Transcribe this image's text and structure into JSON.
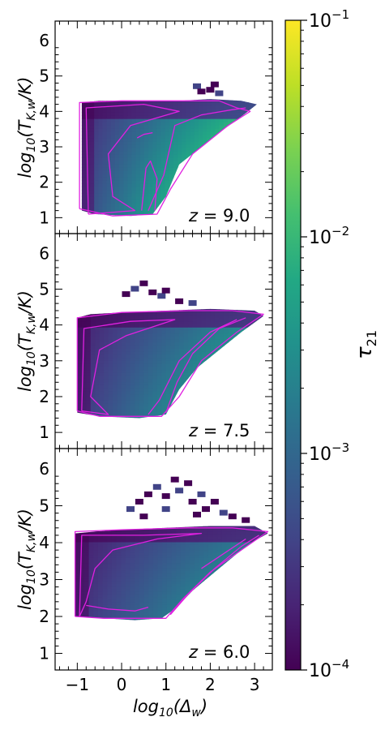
{
  "chart_data": [
    {
      "type": "heatmap",
      "panel": "z = 9.0",
      "annotation": {
        "math": "z",
        "text": "= 9.0"
      },
      "ylabel": "log10(TK,w/K)",
      "xlim": [
        -1.5,
        3.4
      ],
      "ylim": [
        0.55,
        6.55
      ],
      "yticks": [
        1,
        2,
        3,
        4,
        5,
        6
      ],
      "ytick_labels": [
        "1",
        "2",
        "3",
        "4",
        "5",
        "6"
      ],
      "region": {
        "bottom_boundary": [
          [
            -0.9,
            1.2
          ],
          [
            -0.6,
            1.1
          ],
          [
            0.2,
            1.05
          ],
          [
            0.7,
            1.1
          ],
          [
            1.0,
            1.6
          ],
          [
            1.3,
            2.5
          ],
          [
            1.7,
            2.9
          ],
          [
            2.2,
            3.4
          ],
          [
            2.8,
            3.95
          ],
          [
            3.05,
            4.2
          ]
        ],
        "top_boundary": [
          [
            3.05,
            4.2
          ],
          [
            2.7,
            4.3
          ],
          [
            2.0,
            4.35
          ],
          [
            1.3,
            4.3
          ],
          [
            0.0,
            4.3
          ],
          [
            -0.5,
            4.3
          ],
          [
            -0.9,
            4.25
          ]
        ],
        "upper_scatter": [
          [
            1.7,
            4.7
          ],
          [
            1.8,
            4.55
          ],
          [
            2.0,
            4.6
          ],
          [
            2.2,
            4.5
          ],
          [
            2.1,
            4.75
          ]
        ]
      },
      "contours": [
        [
          [
            -0.95,
            1.25
          ],
          [
            -0.95,
            4.25
          ],
          [
            0.0,
            4.3
          ],
          [
            1.5,
            4.3
          ],
          [
            2.2,
            4.3
          ],
          [
            2.6,
            4.1
          ],
          [
            2.9,
            4.0
          ],
          [
            2.4,
            3.6
          ],
          [
            1.6,
            2.8
          ],
          [
            1.1,
            1.8
          ],
          [
            0.8,
            1.1
          ],
          [
            -0.2,
            1.05
          ],
          [
            -0.95,
            1.25
          ]
        ],
        [
          [
            -0.75,
            1.1
          ],
          [
            -0.8,
            4.1
          ],
          [
            0.5,
            4.2
          ],
          [
            1.3,
            4.0
          ],
          [
            0.2,
            3.6
          ],
          [
            -0.3,
            2.8
          ],
          [
            -0.2,
            1.6
          ],
          [
            0.3,
            1.2
          ],
          [
            -0.75,
            1.1
          ]
        ],
        [
          [
            0.6,
            1.2
          ],
          [
            0.95,
            2.2
          ],
          [
            1.2,
            3.6
          ],
          [
            1.8,
            3.9
          ],
          [
            2.5,
            4.05
          ],
          [
            2.8,
            4.1
          ]
        ],
        [
          [
            0.35,
            3.25
          ],
          [
            0.5,
            3.35
          ],
          [
            0.7,
            3.4
          ]
        ],
        [
          [
            0.45,
            1.2
          ],
          [
            0.55,
            2.4
          ],
          [
            0.65,
            2.6
          ],
          [
            0.8,
            2.1
          ],
          [
            0.75,
            1.2
          ]
        ]
      ]
    },
    {
      "type": "heatmap",
      "panel": "z = 7.5",
      "annotation": {
        "math": "z",
        "text": "= 7.5"
      },
      "ylabel": "log10(TK,w/K)",
      "xlim": [
        -1.5,
        3.4
      ],
      "ylim": [
        0.55,
        6.55
      ],
      "yticks": [
        1,
        2,
        3,
        4,
        5,
        6
      ],
      "ytick_labels": [
        "1",
        "2",
        "3",
        "4",
        "5",
        "6"
      ],
      "region": {
        "bottom_boundary": [
          [
            -1.0,
            1.55
          ],
          [
            -0.5,
            1.45
          ],
          [
            0.4,
            1.4
          ],
          [
            1.0,
            1.5
          ],
          [
            1.3,
            2.2
          ],
          [
            1.7,
            2.8
          ],
          [
            2.2,
            3.3
          ],
          [
            2.7,
            3.8
          ],
          [
            3.2,
            4.25
          ]
        ],
        "top_boundary": [
          [
            3.2,
            4.25
          ],
          [
            3.0,
            4.4
          ],
          [
            2.0,
            4.45
          ],
          [
            1.0,
            4.4
          ],
          [
            0.0,
            4.35
          ],
          [
            -0.7,
            4.3
          ],
          [
            -1.0,
            4.2
          ]
        ],
        "upper_scatter": [
          [
            0.3,
            5.0
          ],
          [
            0.5,
            5.15
          ],
          [
            0.7,
            4.9
          ],
          [
            0.9,
            4.8
          ],
          [
            1.0,
            4.95
          ],
          [
            1.3,
            4.65
          ],
          [
            1.6,
            4.6
          ],
          [
            0.1,
            4.85
          ]
        ]
      },
      "contours": [
        [
          [
            -1.0,
            1.6
          ],
          [
            -1.0,
            4.2
          ],
          [
            0.0,
            4.35
          ],
          [
            1.5,
            4.4
          ],
          [
            2.5,
            4.4
          ],
          [
            3.2,
            4.3
          ],
          [
            2.6,
            3.8
          ],
          [
            1.8,
            3.0
          ],
          [
            1.3,
            2.0
          ],
          [
            0.9,
            1.45
          ],
          [
            -0.5,
            1.45
          ],
          [
            -1.0,
            1.6
          ]
        ],
        [
          [
            -0.9,
            1.6
          ],
          [
            -0.85,
            3.9
          ],
          [
            0.2,
            4.1
          ],
          [
            1.2,
            4.15
          ],
          [
            0.1,
            3.7
          ],
          [
            -0.5,
            3.3
          ],
          [
            -0.7,
            2.0
          ],
          [
            -0.3,
            1.5
          ],
          [
            -0.9,
            1.6
          ]
        ],
        [
          [
            1.0,
            1.55
          ],
          [
            1.25,
            2.4
          ],
          [
            1.6,
            3.2
          ],
          [
            2.2,
            3.9
          ],
          [
            2.8,
            4.2
          ]
        ],
        [
          [
            0.6,
            1.5
          ],
          [
            0.85,
            1.9
          ],
          [
            1.3,
            3.0
          ],
          [
            2.0,
            3.8
          ],
          [
            2.6,
            4.15
          ]
        ]
      ]
    },
    {
      "type": "heatmap",
      "panel": "z = 6.0",
      "annotation": {
        "math": "z",
        "text": "= 6.0"
      },
      "ylabel": "log10(TK,w/K)",
      "xlabel": "log10(Δw)",
      "xlim": [
        -1.5,
        3.4
      ],
      "ylim": [
        0.55,
        6.55
      ],
      "xticks": [
        -1,
        0,
        1,
        2,
        3
      ],
      "xtick_labels": [
        "−1",
        "0",
        "1",
        "2",
        "3"
      ],
      "yticks": [
        1,
        2,
        3,
        4,
        5,
        6
      ],
      "ytick_labels": [
        "1",
        "2",
        "3",
        "4",
        "5",
        "6"
      ],
      "region": {
        "bottom_boundary": [
          [
            -1.05,
            2.0
          ],
          [
            -0.4,
            1.95
          ],
          [
            0.3,
            1.9
          ],
          [
            0.9,
            1.95
          ],
          [
            1.2,
            2.2
          ],
          [
            1.6,
            2.7
          ],
          [
            2.1,
            3.2
          ],
          [
            2.6,
            3.7
          ],
          [
            3.0,
            4.05
          ],
          [
            3.3,
            4.25
          ]
        ],
        "top_boundary": [
          [
            3.3,
            4.25
          ],
          [
            3.0,
            4.45
          ],
          [
            2.0,
            4.45
          ],
          [
            1.0,
            4.4
          ],
          [
            0.0,
            4.35
          ],
          [
            -0.6,
            4.3
          ],
          [
            -1.05,
            4.25
          ]
        ],
        "upper_scatter": [
          [
            0.2,
            4.9
          ],
          [
            0.4,
            5.1
          ],
          [
            0.6,
            5.3
          ],
          [
            0.8,
            5.5
          ],
          [
            1.0,
            5.25
          ],
          [
            1.2,
            5.7
          ],
          [
            1.3,
            5.4
          ],
          [
            1.5,
            5.6
          ],
          [
            1.6,
            5.1
          ],
          [
            1.8,
            5.3
          ],
          [
            1.9,
            4.9
          ],
          [
            2.1,
            5.1
          ],
          [
            2.3,
            4.8
          ],
          [
            2.5,
            4.7
          ],
          [
            2.8,
            4.6
          ],
          [
            1.0,
            4.9
          ],
          [
            0.5,
            4.7
          ],
          [
            1.7,
            4.75
          ]
        ]
      },
      "contours": [
        [
          [
            -1.05,
            2.0
          ],
          [
            -1.05,
            4.3
          ],
          [
            0.0,
            4.35
          ],
          [
            1.5,
            4.4
          ],
          [
            2.5,
            4.4
          ],
          [
            3.3,
            4.3
          ],
          [
            2.7,
            3.8
          ],
          [
            2.0,
            3.2
          ],
          [
            1.4,
            2.5
          ],
          [
            1.0,
            1.95
          ],
          [
            -0.4,
            1.95
          ],
          [
            -1.05,
            2.0
          ]
        ],
        [
          [
            -0.95,
            2.0
          ],
          [
            -0.9,
            4.2
          ],
          [
            0.5,
            4.2
          ],
          [
            1.8,
            4.25
          ],
          [
            0.8,
            4.1
          ],
          [
            -0.2,
            3.8
          ],
          [
            -0.6,
            3.3
          ],
          [
            -0.8,
            2.4
          ],
          [
            -0.95,
            2.0
          ]
        ],
        [
          [
            -0.8,
            2.3
          ],
          [
            -0.3,
            2.2
          ],
          [
            0.3,
            2.15
          ],
          [
            0.6,
            2.25
          ]
        ],
        [
          [
            1.1,
            2.05
          ],
          [
            1.5,
            2.6
          ],
          [
            2.1,
            3.3
          ],
          [
            2.7,
            3.9
          ],
          [
            3.1,
            4.2
          ]
        ],
        [
          [
            1.8,
            3.3
          ],
          [
            2.3,
            3.7
          ],
          [
            2.8,
            4.1
          ]
        ]
      ]
    }
  ],
  "colorbar": {
    "label": "τ21",
    "scale": "log",
    "range": [
      0.0001,
      0.1
    ],
    "colormap": "viridis",
    "ticks": [
      0.1,
      0.01,
      0.001,
      0.0001
    ],
    "tick_labels": [
      {
        "base": "10",
        "exp": "−1"
      },
      {
        "base": "10",
        "exp": "−2"
      },
      {
        "base": "10",
        "exp": "−3"
      },
      {
        "base": "10",
        "exp": "−4"
      }
    ]
  },
  "colors": {
    "contour": "#e020e0",
    "viridis": [
      "#440154",
      "#482475",
      "#414487",
      "#355f8d",
      "#2a788e",
      "#21918c",
      "#22a884",
      "#44bf70",
      "#7ad151",
      "#bddf26",
      "#fde725"
    ]
  }
}
